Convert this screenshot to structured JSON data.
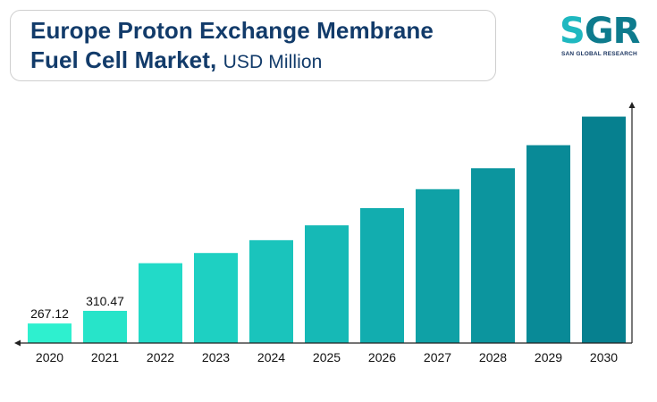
{
  "header": {
    "title_line1": "Europe Proton Exchange Membrane",
    "title_line2": "Fuel Cell Market,",
    "unit": "USD Million"
  },
  "logo": {
    "letter_s": "S",
    "letters_gr": "GR",
    "tagline": "SAN GLOBAL RESEARCH"
  },
  "chart_data": {
    "type": "bar",
    "categories": [
      "2020",
      "2021",
      "2022",
      "2023",
      "2024",
      "2025",
      "2026",
      "2027",
      "2028",
      "2029",
      "2030"
    ],
    "values": [
      267.12,
      310.47,
      474,
      509,
      553,
      604,
      663,
      728,
      800,
      879,
      977
    ],
    "data_labels": [
      "267.12",
      "310.47",
      null,
      null,
      null,
      null,
      null,
      null,
      null,
      null,
      null
    ],
    "title": "Europe Proton Exchange Membrane Fuel Cell Market, USD Million",
    "xlabel": "",
    "ylabel": "",
    "ylim": [
      200,
      1040
    ],
    "grid": false,
    "legend": "none",
    "colors": [
      "#2ef0cf",
      "#27e4c9",
      "#22dac8",
      "#1ed0c2",
      "#1ac4bc",
      "#16b9b6",
      "#12adaf",
      "#0fa1a6",
      "#0c959e",
      "#098a97",
      "#06808f"
    ]
  }
}
